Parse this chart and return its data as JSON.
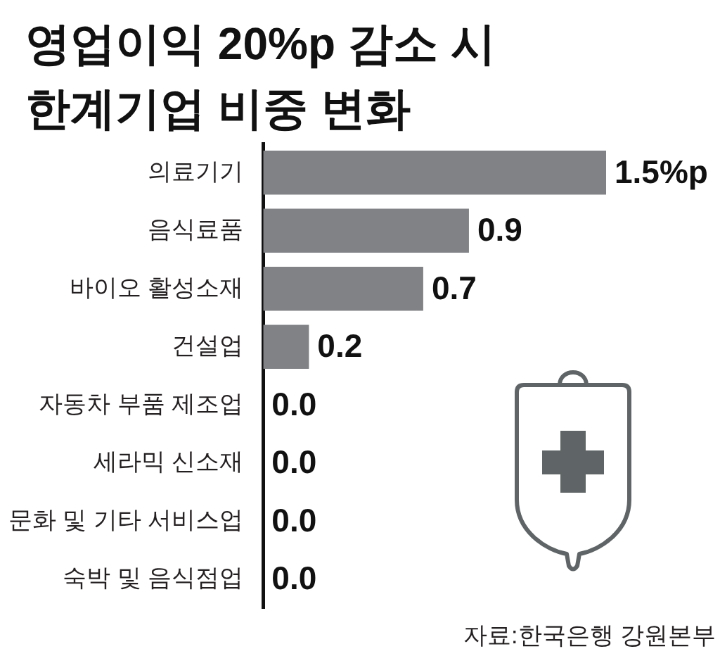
{
  "chart_data": {
    "type": "bar",
    "orientation": "horizontal",
    "title": "영업이익 20%p 감소 시\n한계기업 비중 변화",
    "categories": [
      "의료기기",
      "음식료품",
      "바이오 활성소재",
      "건설업",
      "자동차 부품 제조업",
      "세라믹 신소재",
      "문화 및 기타 서비스업",
      "숙박 및 음식점업"
    ],
    "values": [
      1.5,
      0.9,
      0.7,
      0.2,
      0.0,
      0.0,
      0.0,
      0.0
    ],
    "value_labels": [
      "1.5%p",
      "0.9",
      "0.7",
      "0.2",
      "0.0",
      "0.0",
      "0.0",
      "0.0"
    ],
    "color": "#808285",
    "tick_labels": "y",
    "annotations": [
      "자료:한국은행 강원본부"
    ]
  }
}
